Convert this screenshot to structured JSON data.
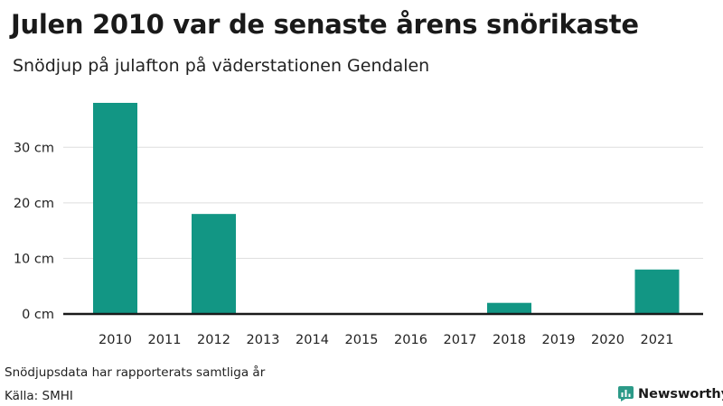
{
  "title": "Julen 2010 var de senaste årens snörikaste",
  "subtitle": "Snödjup på julafton på väderstationen Gendalen",
  "footnote": "Snödjupsdata har rapporterats samtliga år",
  "source": "Källa: SMHI",
  "brand": {
    "name": "Newsworthy",
    "icon": "newsworthy-logo-icon",
    "color": "#2c9a88"
  },
  "colors": {
    "bar": "#129684",
    "grid": "#dddddd",
    "baseline": "#1a1a1a",
    "text": "#222222"
  },
  "chart_data": {
    "type": "bar",
    "categories": [
      "2010",
      "2011",
      "2012",
      "2013",
      "2014",
      "2015",
      "2016",
      "2017",
      "2018",
      "2019",
      "2020",
      "2021"
    ],
    "series": [
      {
        "values": [
          38,
          0,
          18,
          0,
          0,
          0,
          0,
          0,
          2,
          0,
          0,
          8
        ]
      }
    ],
    "ylim": [
      0,
      38
    ],
    "yticks": [
      0,
      10,
      20,
      30
    ],
    "ytick_labels": [
      "0 cm",
      "10 cm",
      "20 cm",
      "30 cm"
    ],
    "xlabel": "",
    "ylabel": "",
    "grid": true,
    "legend": "none"
  }
}
